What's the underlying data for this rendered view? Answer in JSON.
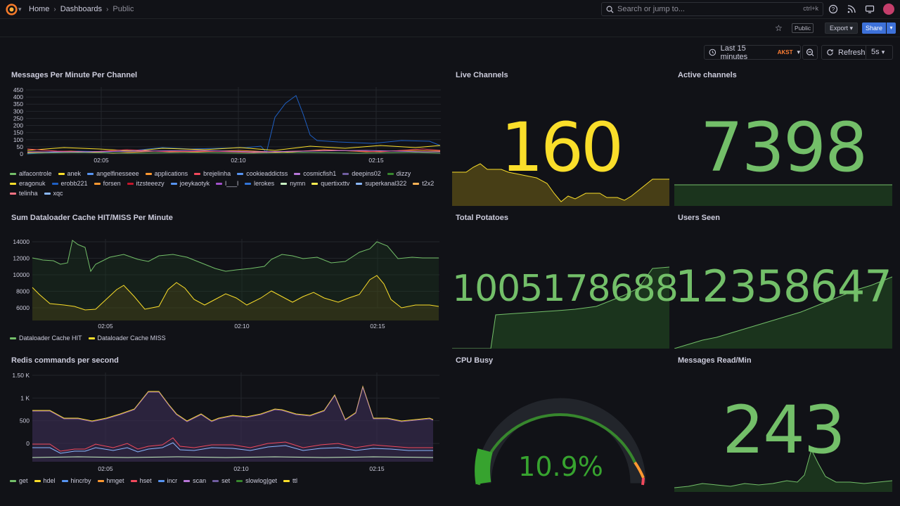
{
  "topbar": {
    "breadcrumbs": [
      "Home",
      "Dashboards",
      "Public"
    ],
    "search_placeholder": "Search or jump to...",
    "search_shortcut": "ctrl+k",
    "icons": [
      "grafana-logo",
      "help-icon",
      "news-icon",
      "kiosk-icon",
      "avatar"
    ]
  },
  "toolbar": {
    "public_badge": "Public",
    "export_label": "Export",
    "share_label": "Share",
    "time_range": "Last 15 minutes",
    "timezone": "AKST",
    "refresh_label": "Refresh",
    "refresh_interval": "5s"
  },
  "colors": {
    "green": "#73bf69",
    "yellow": "#fade2a",
    "background": "#111217",
    "panel_fill_yellow": "#5a4d17",
    "panel_fill_green": "#1d3b1f"
  },
  "panels": {
    "messages_per_minute": {
      "title": "Messages Per Minute Per Channel",
      "y_ticks": [
        "450",
        "400",
        "350",
        "300",
        "250",
        "200",
        "150",
        "100",
        "50",
        "0"
      ],
      "x_ticks": [
        "02:05",
        "02:10",
        "02:15"
      ],
      "legend": [
        {
          "name": "alfacontrole",
          "color": "#73bf69"
        },
        {
          "name": "anek",
          "color": "#fade2a"
        },
        {
          "name": "angelfinesseee",
          "color": "#5794f2"
        },
        {
          "name": "applications",
          "color": "#ff9830"
        },
        {
          "name": "brejelinha",
          "color": "#f2495c"
        },
        {
          "name": "cookieaddictss",
          "color": "#5794f2"
        },
        {
          "name": "cosmicfish1",
          "color": "#b877d9"
        },
        {
          "name": "deepins02",
          "color": "#705da0"
        },
        {
          "name": "dizzy",
          "color": "#37872d"
        },
        {
          "name": "eragonuk",
          "color": "#fade2a"
        },
        {
          "name": "erobb221",
          "color": "#1f60c4"
        },
        {
          "name": "forsen",
          "color": "#ff9830"
        },
        {
          "name": "itzsteeezy",
          "color": "#c4162a"
        },
        {
          "name": "joeykaotyk",
          "color": "#5794f2"
        },
        {
          "name": "l___l",
          "color": "#a352cc"
        },
        {
          "name": "lerokes",
          "color": "#3274d9"
        },
        {
          "name": "nymn",
          "color": "#c8f2c2"
        },
        {
          "name": "quertixxttv",
          "color": "#ffee52"
        },
        {
          "name": "superkanal322",
          "color": "#8ab8ff"
        },
        {
          "name": "t2x2",
          "color": "#ffb357"
        },
        {
          "name": "telinha",
          "color": "#ff7383"
        },
        {
          "name": "xqc",
          "color": "#8ab8ff"
        }
      ]
    },
    "live_channels": {
      "title": "Live Channels",
      "value": "160"
    },
    "active_channels": {
      "title": "Active channels",
      "value": "7398"
    },
    "dataloader_cache": {
      "title": "Sum Dataloader Cache HIT/MISS Per Minute",
      "y_ticks": [
        "14000",
        "12000",
        "10000",
        "8000",
        "6000"
      ],
      "x_ticks": [
        "02:05",
        "02:10",
        "02:15"
      ],
      "legend": [
        {
          "name": "Dataloader Cache HIT",
          "color": "#73bf69"
        },
        {
          "name": "Dataloader Cache MISS",
          "color": "#fade2a"
        }
      ]
    },
    "total_potatoes": {
      "title": "Total Potatoes",
      "value": "1005178688"
    },
    "users_seen": {
      "title": "Users Seen",
      "value": "12358647"
    },
    "redis_commands": {
      "title": "Redis commands per second",
      "y_ticks": [
        "1.50 K",
        "1 K",
        "500",
        "0"
      ],
      "x_ticks": [
        "02:05",
        "02:10",
        "02:15"
      ],
      "legend": [
        {
          "name": "get",
          "color": "#73bf69"
        },
        {
          "name": "hdel",
          "color": "#fade2a"
        },
        {
          "name": "hincrby",
          "color": "#5794f2"
        },
        {
          "name": "hmget",
          "color": "#ff9830"
        },
        {
          "name": "hset",
          "color": "#f2495c"
        },
        {
          "name": "incr",
          "color": "#5794f2"
        },
        {
          "name": "scan",
          "color": "#b877d9"
        },
        {
          "name": "set",
          "color": "#705da0"
        },
        {
          "name": "slowlog|get",
          "color": "#37872d"
        },
        {
          "name": "ttl",
          "color": "#fade2a"
        }
      ]
    },
    "cpu_busy": {
      "title": "CPU Busy",
      "value": "10.9%",
      "gauge_fraction": 0.109
    },
    "messages_read": {
      "title": "Messages Read/Min",
      "value": "243"
    }
  }
}
